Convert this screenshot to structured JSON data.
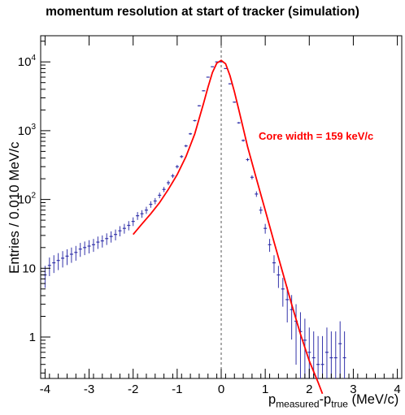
{
  "chart_data": {
    "type": "histogram",
    "title": "momentum resolution at start of tracker (simulation)",
    "ylabel": "Entries / 0.010 MeV/c",
    "xlabel": {
      "p": "p",
      "sub1": "measured",
      "minus": "-p",
      "sub2": "true",
      "unit": "(MeV/c)"
    },
    "xlim": [
      -4.1,
      4.1
    ],
    "ylim": [
      0.25,
      24000
    ],
    "y_scale": "log",
    "x_ticks": [
      "-4",
      "-3",
      "-2",
      "-1",
      "0",
      "1",
      "2",
      "3",
      "4"
    ],
    "x_tick_values": [
      -4,
      -3,
      -2,
      -1,
      0,
      1,
      2,
      3,
      4
    ],
    "y_ticks": [
      {
        "value": 1,
        "base": "1",
        "exp": ""
      },
      {
        "value": 10,
        "base": "10",
        "exp": ""
      },
      {
        "value": 100,
        "base": "10",
        "exp": "2"
      },
      {
        "value": 1000,
        "base": "10",
        "exp": "3"
      },
      {
        "value": 10000,
        "base": "10",
        "exp": "4"
      }
    ],
    "annotation": "Core width = 159 keV/c",
    "reference_line_x": 0,
    "colors": {
      "data": "#3333aa",
      "fit": "#ff0000",
      "axis": "#000000",
      "reference_line": "#555555"
    },
    "series": [
      {
        "kind": "histogram_points",
        "x": [
          -4.0,
          -3.9,
          -3.8,
          -3.7,
          -3.6,
          -3.5,
          -3.4,
          -3.3,
          -3.2,
          -3.1,
          -3.0,
          -2.9,
          -2.8,
          -2.7,
          -2.6,
          -2.5,
          -2.4,
          -2.3,
          -2.2,
          -2.1,
          -2.0,
          -1.9,
          -1.8,
          -1.7,
          -1.6,
          -1.5,
          -1.4,
          -1.3,
          -1.2,
          -1.1,
          -1.0,
          -0.9,
          -0.8,
          -0.7,
          -0.6,
          -0.5,
          -0.4,
          -0.3,
          -0.2,
          -0.1,
          0.0,
          0.1,
          0.2,
          0.3,
          0.4,
          0.5,
          0.6,
          0.7,
          0.8,
          0.9,
          1.0,
          1.1,
          1.2,
          1.3,
          1.4,
          1.5,
          1.6,
          1.7,
          1.8,
          1.9,
          2.0,
          2.1,
          2.2,
          2.3,
          2.4,
          2.5,
          2.6,
          2.7,
          2.8
        ],
        "y": [
          8,
          11,
          12,
          13,
          14,
          15,
          16,
          17,
          19,
          20,
          21,
          22,
          24,
          25,
          27,
          29,
          31,
          35,
          38,
          42,
          48,
          58,
          62,
          70,
          85,
          95,
          115,
          140,
          175,
          220,
          300,
          420,
          600,
          900,
          1400,
          2300,
          3800,
          6000,
          8500,
          10000,
          10000,
          8000,
          4800,
          2600,
          1300,
          720,
          380,
          210,
          120,
          70,
          38,
          22,
          12,
          8,
          5,
          3.5,
          2.5,
          1.7,
          1.2,
          0.9,
          0.6,
          0.5,
          0.4,
          0.4,
          0.6,
          0.5,
          0.5,
          0.8,
          0.5
        ]
      },
      {
        "kind": "fit_curve",
        "x": [
          -2.0,
          -1.8,
          -1.6,
          -1.4,
          -1.2,
          -1.0,
          -0.8,
          -0.6,
          -0.5,
          -0.4,
          -0.3,
          -0.2,
          -0.1,
          0.0,
          0.1,
          0.2,
          0.3,
          0.4,
          0.5,
          0.6,
          0.8,
          1.0,
          1.2,
          1.4,
          1.6,
          1.8,
          2.0,
          2.2,
          2.3
        ],
        "y": [
          31,
          44,
          62,
          90,
          140,
          230,
          420,
          900,
          1500,
          2500,
          4300,
          7000,
          9600,
          10500,
          9400,
          6300,
          3700,
          2000,
          1080,
          580,
          200,
          70,
          24,
          8.5,
          3.0,
          1.1,
          0.45,
          0.22,
          0.15
        ]
      }
    ]
  }
}
